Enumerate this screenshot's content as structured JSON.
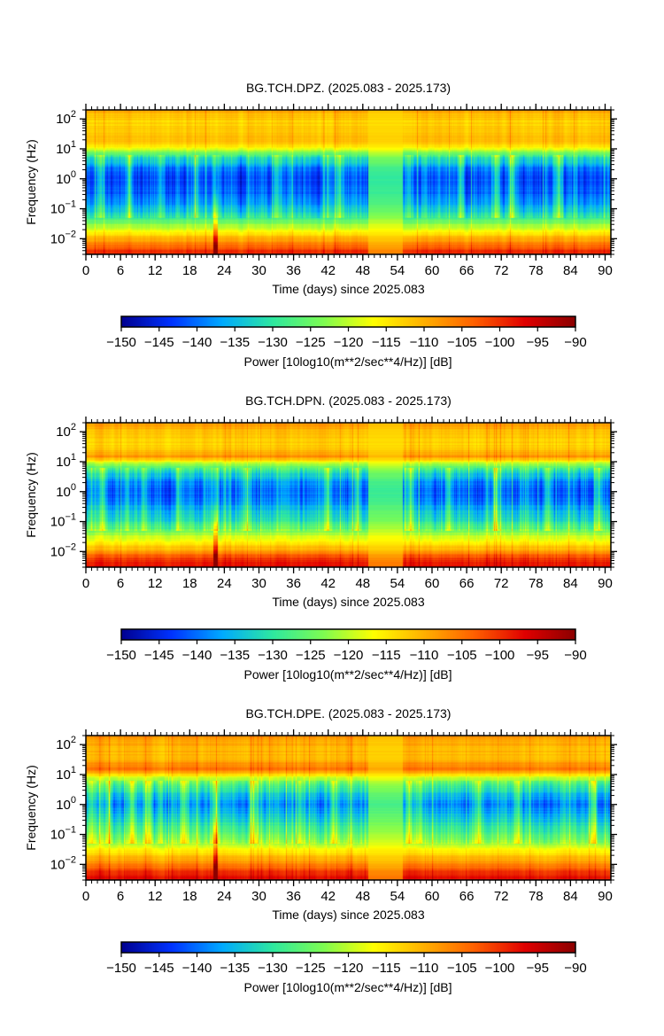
{
  "chart_data": [
    {
      "type": "heatmap",
      "title": "BG.TCH.DPZ. (2025.083 - 2025.173)",
      "xlabel": "Time (days) since 2025.083",
      "ylabel": "Frequency (Hz)",
      "xlim": [
        0,
        91
      ],
      "ylim": [
        0.003,
        200
      ],
      "yscale": "log",
      "x_ticks": [
        0,
        6,
        12,
        18,
        24,
        30,
        36,
        42,
        48,
        54,
        60,
        66,
        72,
        78,
        84,
        90
      ],
      "y_ticks": [
        {
          "base": "10",
          "exp": "2",
          "value": 100
        },
        {
          "base": "10",
          "exp": "1",
          "value": 10
        },
        {
          "base": "10",
          "exp": "0",
          "value": 1
        },
        {
          "base": "10",
          "exp": "−1",
          "value": 0.1
        },
        {
          "base": "10",
          "exp": "−2",
          "value": 0.01
        }
      ],
      "colorbar": {
        "label": "Power [10log10(m**2/sec**4/Hz)] [dB]",
        "min": -150,
        "max": -90,
        "ticks": [
          "−150",
          "−145",
          "−140",
          "−135",
          "−130",
          "−125",
          "−120",
          "−115",
          "−110",
          "−105",
          "−100",
          "−95",
          "−90"
        ]
      },
      "colormap": [
        "#00008f",
        "#0033ff",
        "#00aaff",
        "#2ee8a0",
        "#7dfc52",
        "#ffff00",
        "#ffb000",
        "#ff6000",
        "#e00000",
        "#8b0000"
      ],
      "profile": [
        [
          0.003,
          -98
        ],
        [
          0.006,
          -104
        ],
        [
          0.012,
          -112
        ],
        [
          0.03,
          -122
        ],
        [
          0.06,
          -131
        ],
        [
          0.15,
          -137
        ],
        [
          0.4,
          -141
        ],
        [
          1.0,
          -142
        ],
        [
          2.0,
          -140
        ],
        [
          5.0,
          -131
        ],
        [
          8.0,
          -122
        ],
        [
          15,
          -112
        ],
        [
          30,
          -111
        ],
        [
          80,
          -113
        ],
        [
          200,
          -109
        ]
      ],
      "gap": [
        49,
        55
      ],
      "events": [
        2.5,
        7.5,
        13,
        19,
        22.5,
        33,
        42,
        44,
        56,
        65,
        71,
        74,
        82
      ],
      "spikes": [
        22.5
      ],
      "seed": 11
    },
    {
      "type": "heatmap",
      "title": "BG.TCH.DPN. (2025.083 - 2025.173)",
      "xlabel": "Time (days) since 2025.083",
      "ylabel": "Frequency (Hz)",
      "xlim": [
        0,
        91
      ],
      "ylim": [
        0.003,
        200
      ],
      "yscale": "log",
      "x_ticks": [
        0,
        6,
        12,
        18,
        24,
        30,
        36,
        42,
        48,
        54,
        60,
        66,
        72,
        78,
        84,
        90
      ],
      "y_ticks": [
        {
          "base": "10",
          "exp": "2",
          "value": 100
        },
        {
          "base": "10",
          "exp": "1",
          "value": 10
        },
        {
          "base": "10",
          "exp": "0",
          "value": 1
        },
        {
          "base": "10",
          "exp": "−1",
          "value": 0.1
        },
        {
          "base": "10",
          "exp": "−2",
          "value": 0.01
        }
      ],
      "colorbar": {
        "label": "Power [10log10(m**2/sec**4/Hz)] [dB]",
        "min": -150,
        "max": -90,
        "ticks": [
          "−150",
          "−145",
          "−140",
          "−135",
          "−130",
          "−125",
          "−120",
          "−115",
          "−110",
          "−105",
          "−100",
          "−95",
          "−90"
        ]
      },
      "colormap": [
        "#00008f",
        "#0033ff",
        "#00aaff",
        "#2ee8a0",
        "#7dfc52",
        "#ffff00",
        "#ffb000",
        "#ff6000",
        "#e00000",
        "#8b0000"
      ],
      "profile": [
        [
          0.003,
          -96
        ],
        [
          0.006,
          -101
        ],
        [
          0.012,
          -110
        ],
        [
          0.03,
          -119
        ],
        [
          0.06,
          -126
        ],
        [
          0.15,
          -133
        ],
        [
          0.4,
          -138
        ],
        [
          1.0,
          -141
        ],
        [
          2.0,
          -139
        ],
        [
          5.0,
          -130
        ],
        [
          8.0,
          -122
        ],
        [
          15,
          -107
        ],
        [
          30,
          -113
        ],
        [
          80,
          -112
        ],
        [
          200,
          -108
        ]
      ],
      "gap": [
        49,
        55
      ],
      "events": [
        1,
        3,
        7,
        10,
        16,
        22.5,
        28,
        42,
        47,
        56,
        63,
        71,
        80,
        89
      ],
      "spikes": [
        22.5
      ],
      "seed": 23
    },
    {
      "type": "heatmap",
      "title": "BG.TCH.DPE. (2025.083 - 2025.173)",
      "xlabel": "Time (days) since 2025.083",
      "ylabel": "Frequency (Hz)",
      "xlim": [
        0,
        91
      ],
      "ylim": [
        0.003,
        200
      ],
      "yscale": "log",
      "x_ticks": [
        0,
        6,
        12,
        18,
        24,
        30,
        36,
        42,
        48,
        54,
        60,
        66,
        72,
        78,
        84,
        90
      ],
      "y_ticks": [
        {
          "base": "10",
          "exp": "2",
          "value": 100
        },
        {
          "base": "10",
          "exp": "1",
          "value": 10
        },
        {
          "base": "10",
          "exp": "0",
          "value": 1
        },
        {
          "base": "10",
          "exp": "−1",
          "value": 0.1
        },
        {
          "base": "10",
          "exp": "−2",
          "value": 0.01
        }
      ],
      "colorbar": {
        "label": "Power [10log10(m**2/sec**4/Hz)] [dB]",
        "min": -150,
        "max": -90,
        "ticks": [
          "−150",
          "−145",
          "−140",
          "−135",
          "−130",
          "−125",
          "−120",
          "−115",
          "−110",
          "−105",
          "−100",
          "−95",
          "−90"
        ]
      },
      "colormap": [
        "#00008f",
        "#0033ff",
        "#00aaff",
        "#2ee8a0",
        "#7dfc52",
        "#ffff00",
        "#ffb000",
        "#ff6000",
        "#e00000",
        "#8b0000"
      ],
      "profile": [
        [
          0.003,
          -96
        ],
        [
          0.006,
          -101
        ],
        [
          0.012,
          -108
        ],
        [
          0.03,
          -116
        ],
        [
          0.06,
          -123
        ],
        [
          0.15,
          -129
        ],
        [
          0.4,
          -134
        ],
        [
          1.0,
          -139
        ],
        [
          2.0,
          -135
        ],
        [
          5.0,
          -127
        ],
        [
          8.0,
          -119
        ],
        [
          15,
          -104
        ],
        [
          30,
          -110
        ],
        [
          80,
          -111
        ],
        [
          200,
          -107
        ]
      ],
      "gap": [
        49,
        55
      ],
      "events": [
        1,
        4,
        8,
        11,
        13,
        17,
        22.5,
        29,
        37,
        43,
        56,
        58,
        68,
        75,
        88
      ],
      "spikes": [
        22.5
      ],
      "seed": 37
    }
  ]
}
